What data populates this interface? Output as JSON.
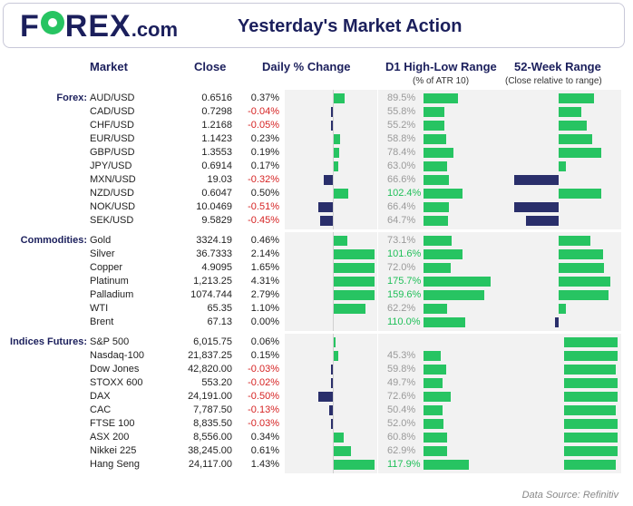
{
  "header": {
    "logo_text_1": "F",
    "logo_text_2": "REX",
    "logo_suffix": ".com",
    "title": "Yesterday's Market Action"
  },
  "columns": {
    "market": "Market",
    "close": "Close",
    "daily": "Daily % Change",
    "d1": "D1 High-Low Range",
    "d1_sub": "(% of ATR 10)",
    "week52": "52-Week Range",
    "week52_sub": "(Close relative to range)"
  },
  "footer": "Data Source: Refinitiv",
  "colors": {
    "green": "#27c462",
    "navy": "#2a2f6b",
    "negative_text": "#d62424",
    "gray_text": "#9a9a9a"
  },
  "chart_data": {
    "type": "table",
    "sections": [
      {
        "label": "Forex:",
        "rows": [
          {
            "market": "AUD/USD",
            "close": "0.6516",
            "change": "0.37%",
            "change_val": 0.37,
            "d1": "89.5%",
            "d1_val": 89.5,
            "w52": 0.62
          },
          {
            "market": "CAD/USD",
            "close": "0.7298",
            "change": "-0.04%",
            "change_val": -0.04,
            "d1": "55.8%",
            "d1_val": 55.8,
            "w52": 0.4
          },
          {
            "market": "CHF/USD",
            "close": "1.2168",
            "change": "-0.05%",
            "change_val": -0.05,
            "d1": "55.2%",
            "d1_val": 55.2,
            "w52": 0.49
          },
          {
            "market": "EUR/USD",
            "close": "1.1423",
            "change": "0.23%",
            "change_val": 0.23,
            "d1": "58.8%",
            "d1_val": 58.8,
            "w52": 0.58
          },
          {
            "market": "GBP/USD",
            "close": "1.3553",
            "change": "0.19%",
            "change_val": 0.19,
            "d1": "78.4%",
            "d1_val": 78.4,
            "w52": 0.75
          },
          {
            "market": "JPY/USD",
            "close": "0.6914",
            "change": "0.17%",
            "change_val": 0.17,
            "d1": "63.0%",
            "d1_val": 63.0,
            "w52": 0.12
          },
          {
            "market": "MXN/USD",
            "close": "19.03",
            "change": "-0.32%",
            "change_val": -0.32,
            "d1": "66.6%",
            "d1_val": 66.6,
            "w52": -0.77
          },
          {
            "market": "NZD/USD",
            "close": "0.6047",
            "change": "0.50%",
            "change_val": 0.5,
            "d1": "102.4%",
            "d1_val": 102.4,
            "w52": 0.75
          },
          {
            "market": "NOK/USD",
            "close": "10.0469",
            "change": "-0.51%",
            "change_val": -0.51,
            "d1": "66.4%",
            "d1_val": 66.4,
            "w52": -0.77
          },
          {
            "market": "SEK/USD",
            "close": "9.5829",
            "change": "-0.45%",
            "change_val": -0.45,
            "d1": "64.7%",
            "d1_val": 64.7,
            "w52": -0.57
          }
        ]
      },
      {
        "label": "Commodities:",
        "rows": [
          {
            "market": "Gold",
            "close": "3324.19",
            "change": "0.46%",
            "change_val": 0.46,
            "d1": "73.1%",
            "d1_val": 73.1,
            "w52": 0.55
          },
          {
            "market": "Silver",
            "close": "36.7333",
            "change": "2.14%",
            "change_val": 2.14,
            "d1": "101.6%",
            "d1_val": 101.6,
            "w52": 0.78
          },
          {
            "market": "Copper",
            "close": "4.9095",
            "change": "1.65%",
            "change_val": 1.65,
            "d1": "72.0%",
            "d1_val": 72.0,
            "w52": 0.8
          },
          {
            "market": "Platinum",
            "close": "1,213.25",
            "change": "4.31%",
            "change_val": 4.31,
            "d1": "175.7%",
            "d1_val": 175.7,
            "w52": 0.9
          },
          {
            "market": "Palladium",
            "close": "1074.744",
            "change": "2.79%",
            "change_val": 2.79,
            "d1": "159.6%",
            "d1_val": 159.6,
            "w52": 0.87
          },
          {
            "market": "WTI",
            "close": "65.35",
            "change": "1.10%",
            "change_val": 1.1,
            "d1": "62.2%",
            "d1_val": 62.2,
            "w52": 0.12
          },
          {
            "market": "Brent",
            "close": "67.13",
            "change": "0.00%",
            "change_val": 0.0,
            "d1": "110.0%",
            "d1_val": 110.0,
            "w52": -0.07
          }
        ]
      },
      {
        "label": "Indices Futures:",
        "rows": [
          {
            "market": "S&P 500",
            "close": "6,015.75",
            "change": "0.06%",
            "change_val": 0.06,
            "d1": "",
            "d1_val": 0,
            "w52": 0.94
          },
          {
            "market": "Nasdaq-100",
            "close": "21,837.25",
            "change": "0.15%",
            "change_val": 0.15,
            "d1": "45.3%",
            "d1_val": 45.3,
            "w52": 0.93
          },
          {
            "market": "Dow Jones",
            "close": "42,820.00",
            "change": "-0.03%",
            "change_val": -0.03,
            "d1": "59.8%",
            "d1_val": 59.8,
            "w52": 0.91
          },
          {
            "market": "STOXX 600",
            "close": "553.20",
            "change": "-0.02%",
            "change_val": -0.02,
            "d1": "49.7%",
            "d1_val": 49.7,
            "w52": 0.94
          },
          {
            "market": "DAX",
            "close": "24,191.00",
            "change": "-0.50%",
            "change_val": -0.5,
            "d1": "72.6%",
            "d1_val": 72.6,
            "w52": 0.94
          },
          {
            "market": "CAC",
            "close": "7,787.50",
            "change": "-0.13%",
            "change_val": -0.13,
            "d1": "50.4%",
            "d1_val": 50.4,
            "w52": 0.91
          },
          {
            "market": "FTSE 100",
            "close": "8,835.50",
            "change": "-0.03%",
            "change_val": -0.03,
            "d1": "52.0%",
            "d1_val": 52.0,
            "w52": 0.94
          },
          {
            "market": "ASX 200",
            "close": "8,556.00",
            "change": "0.34%",
            "change_val": 0.34,
            "d1": "60.8%",
            "d1_val": 60.8,
            "w52": 0.94
          },
          {
            "market": "Nikkei 225",
            "close": "38,245.00",
            "change": "0.61%",
            "change_val": 0.61,
            "d1": "62.9%",
            "d1_val": 62.9,
            "w52": 0.94
          },
          {
            "market": "Hang Seng",
            "close": "24,117.00",
            "change": "1.43%",
            "change_val": 1.43,
            "d1": "117.9%",
            "d1_val": 117.9,
            "w52": 0.91
          }
        ]
      }
    ]
  }
}
